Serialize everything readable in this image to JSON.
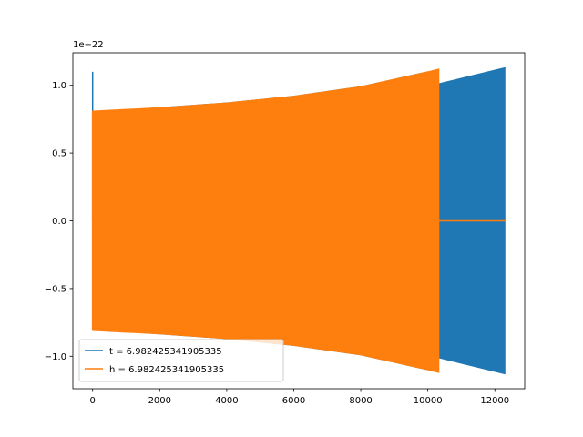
{
  "chart_data": {
    "type": "line",
    "title": "",
    "xlabel": "",
    "ylabel": "",
    "y_offset_label": "1e−22",
    "xlim": [
      -590,
      12890
    ],
    "ylim": [
      -1.24,
      1.24
    ],
    "x_ticks": [
      0,
      2000,
      4000,
      6000,
      8000,
      10000,
      12000
    ],
    "x_tick_labels": [
      "0",
      "2000",
      "4000",
      "6000",
      "8000",
      "10000",
      "12000"
    ],
    "y_ticks": [
      -1.0,
      -0.5,
      0.0,
      0.5,
      1.0
    ],
    "y_tick_labels": [
      "−1.0",
      "−0.5",
      "0.0",
      "0.5",
      "1.0"
    ],
    "grid": false,
    "legend_position": "lower-left",
    "series": [
      {
        "name": "t = 6.982425341905335",
        "color": "#1f77b4",
        "spike": {
          "x": 0,
          "y_max": 1.1,
          "y_min": 0.0
        },
        "envelope_x": [
          0,
          2000,
          4000,
          6000,
          8000,
          10000,
          10300,
          12300
        ],
        "envelope_y": [
          0.8,
          0.835,
          0.87,
          0.92,
          0.99,
          1.1,
          1.01,
          1.13
        ],
        "zero_tail_x": [
          10320,
          12300
        ]
      },
      {
        "name": "h = 6.982425341905335",
        "color": "#ff7f0e",
        "envelope_x": [
          0,
          2000,
          4000,
          6000,
          8000,
          10000,
          10330
        ],
        "envelope_y": [
          0.81,
          0.835,
          0.87,
          0.92,
          0.99,
          1.1,
          1.12
        ],
        "zero_tail_x": [
          10330,
          12300
        ]
      }
    ]
  }
}
